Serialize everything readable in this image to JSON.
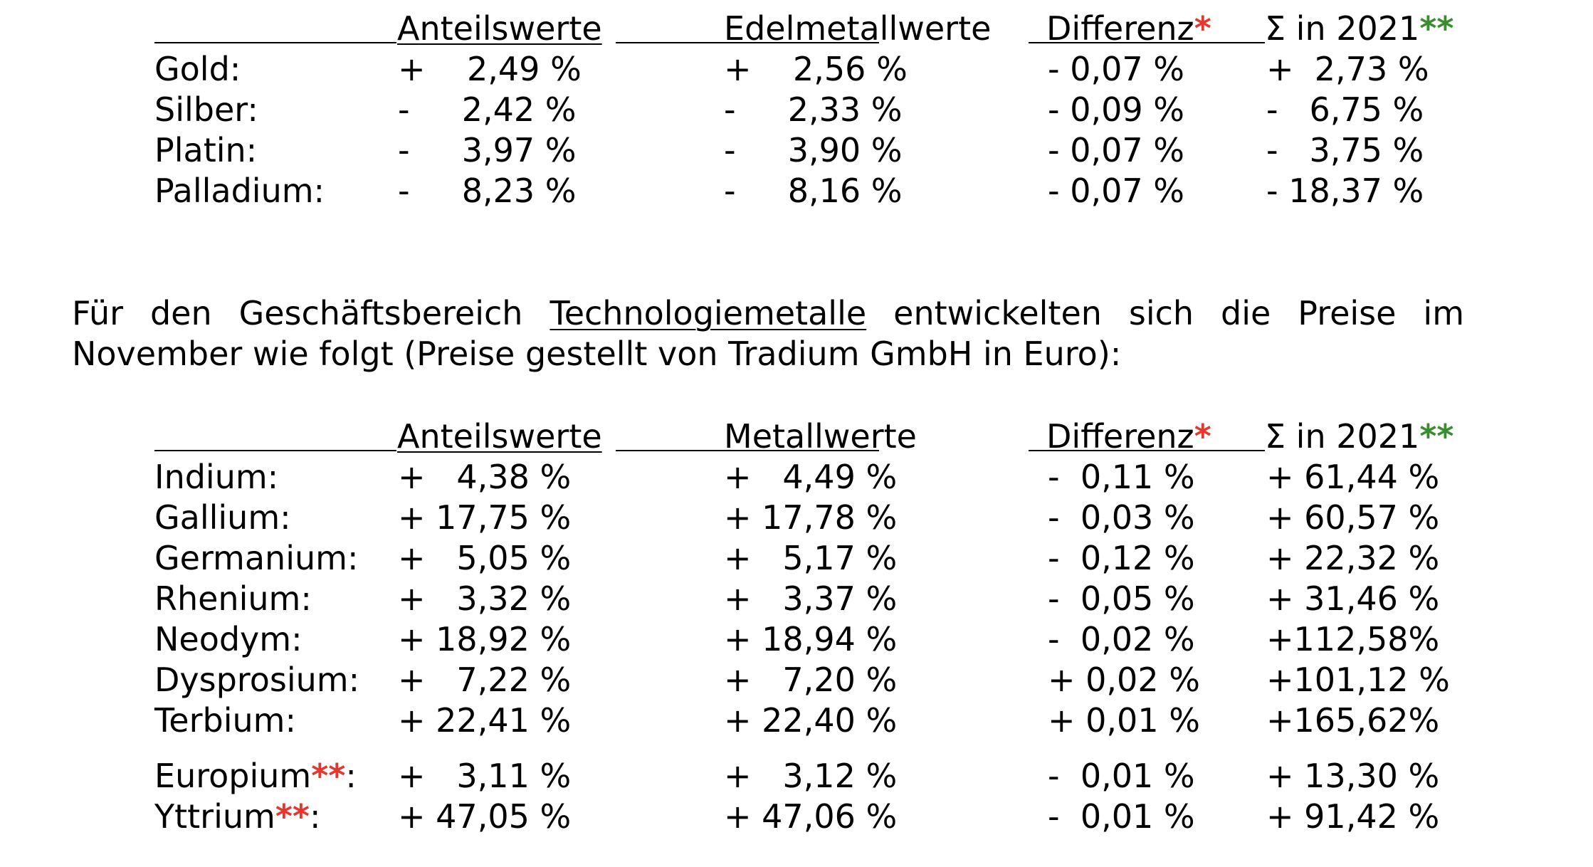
{
  "table1": {
    "headers": {
      "col1": "Anteilswerte",
      "col2": "Edelmetallwerte",
      "col3": "Differenz",
      "col3_mark": "*",
      "col4": "Σ in 2021",
      "col4_mark": "**"
    },
    "rows": [
      {
        "name": "Gold:",
        "v1": "+    2,49 %",
        "v2": "+    2,56 %",
        "v3": "- 0,07 %",
        "v4": "+  2,73 %"
      },
      {
        "name": "Silber:",
        "v1": "-     2,42 %",
        "v2": "-     2,33 %",
        "v3": "- 0,09 %",
        "v4": "-   6,75 %"
      },
      {
        "name": "Platin:",
        "v1": "-     3,97 %",
        "v2": "-     3,90 %",
        "v3": "- 0,07 %",
        "v4": "-   3,75 %"
      },
      {
        "name": "Palladium:",
        "v1": "-     8,23 %",
        "v2": "-     8,16 %",
        "v3": "- 0,07 %",
        "v4": "- 18,37 %"
      }
    ]
  },
  "paragraph": {
    "before": "Für den Geschäftsbereich ",
    "underlined": "Technologiemetalle",
    "after": " entwickelten sich die Preise im November wie folgt (Preise gestellt von Tradium GmbH in Euro):"
  },
  "table2": {
    "headers": {
      "col1": "Anteilswerte",
      "col2": "Metallwerte",
      "col3": "Differenz",
      "col3_mark": "*",
      "col4": "Σ in 2021",
      "col4_mark": "**"
    },
    "rows": [
      {
        "name": "Indium:",
        "mark": "",
        "suffix": "",
        "v1": "+   4,38 %",
        "v2": "+   4,49 %",
        "v3": "-  0,11 %",
        "v4": "+ 61,44 %"
      },
      {
        "name": "Gallium:",
        "mark": "",
        "suffix": "",
        "v1": "+ 17,75 %",
        "v2": "+ 17,78 %",
        "v3": "-  0,03 %",
        "v4": "+ 60,57 %"
      },
      {
        "name": "Germanium:",
        "mark": "",
        "suffix": "",
        "v1": "+   5,05 %",
        "v2": "+   5,17 %",
        "v3": "-  0,12 %",
        "v4": "+ 22,32 %"
      },
      {
        "name": "Rhenium:",
        "mark": "",
        "suffix": "",
        "v1": "+   3,32 %",
        "v2": "+   3,37 %",
        "v3": "-  0,05 %",
        "v4": "+ 31,46 %"
      },
      {
        "name": "Neodym:",
        "mark": "",
        "suffix": "",
        "v1": "+ 18,92 %",
        "v2": "+ 18,94 %",
        "v3": "-  0,02 %",
        "v4": "+112,58%"
      },
      {
        "name": "Dysprosium:",
        "mark": "",
        "suffix": "",
        "v1": "+   7,22 %",
        "v2": "+   7,20 %",
        "v3": "+ 0,02 %",
        "v4": "+101,12 %"
      },
      {
        "name": "Terbium:",
        "mark": "",
        "suffix": "",
        "v1": "+ 22,41 %",
        "v2": "+ 22,40 %",
        "v3": "+ 0,01 %",
        "v4": "+165,62%"
      },
      {
        "name": "Europium",
        "mark": "**",
        "suffix": ":",
        "v1": "+   3,11 %",
        "v2": "+   3,12 %",
        "v3": "-  0,01 %",
        "v4": "+ 13,30 %"
      },
      {
        "name": "Yttrium",
        "mark": "**",
        "suffix": ":",
        "v1": "+ 47,05 %",
        "v2": "+ 47,06 %",
        "v3": "-  0,01 %",
        "v4": "+ 91,42 %"
      }
    ]
  },
  "colors": {
    "red_mark": "#e8362d",
    "green_mark": "#3a8d2f"
  }
}
